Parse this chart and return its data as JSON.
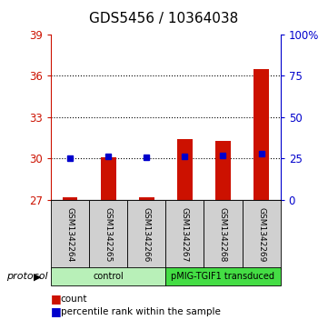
{
  "title": "GDS5456 / 10364038",
  "samples": [
    "GSM1342264",
    "GSM1342265",
    "GSM1342266",
    "GSM1342267",
    "GSM1342268",
    "GSM1342269"
  ],
  "counts": [
    27.2,
    30.1,
    27.2,
    31.4,
    31.3,
    36.5
  ],
  "percentile_ranks": [
    25.0,
    26.5,
    25.5,
    26.0,
    27.0,
    28.0
  ],
  "count_base": 27.0,
  "ylim_left": [
    27,
    39
  ],
  "ylim_right": [
    0,
    100
  ],
  "yticks_left": [
    27,
    30,
    33,
    36,
    39
  ],
  "yticks_right": [
    0,
    25,
    50,
    75,
    100
  ],
  "ytick_labels_right": [
    "0",
    "25",
    "50",
    "75",
    "100%"
  ],
  "grid_values": [
    30,
    33,
    36
  ],
  "bar_color": "#cc1100",
  "percentile_color": "#0000cc",
  "protocol_groups": [
    {
      "label": "control",
      "start": 0,
      "end": 2,
      "color": "#b8f0b8"
    },
    {
      "label": "pMIG-TGIF1 transduced",
      "start": 3,
      "end": 5,
      "color": "#44dd44"
    }
  ],
  "sample_box_color": "#d0d0d0",
  "protocol_label": "protocol",
  "legend_items": [
    {
      "color": "#cc1100",
      "label": "count"
    },
    {
      "color": "#0000cc",
      "label": "percentile rank within the sample"
    }
  ],
  "background_color": "#ffffff",
  "left_axis_color": "#cc1100",
  "right_axis_color": "#0000cc",
  "title_fontsize": 11,
  "bar_width": 0.4
}
